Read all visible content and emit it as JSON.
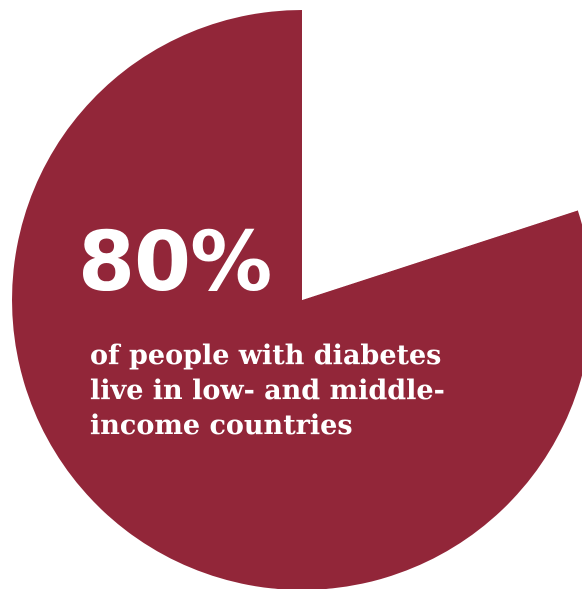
{
  "chart_data": {
    "type": "pie",
    "slices": [
      {
        "value": 80,
        "color": "#922639",
        "highlighted": true
      },
      {
        "value": 20,
        "color": "#ffffff",
        "highlighted": false
      }
    ],
    "stat_label": "80%",
    "caption_lines": [
      "of people with diabetes",
      "live in low- and middle-",
      "income countries"
    ]
  },
  "colors": {
    "accent": "#922639",
    "text": "#ffffff",
    "background": "#ffffff"
  }
}
